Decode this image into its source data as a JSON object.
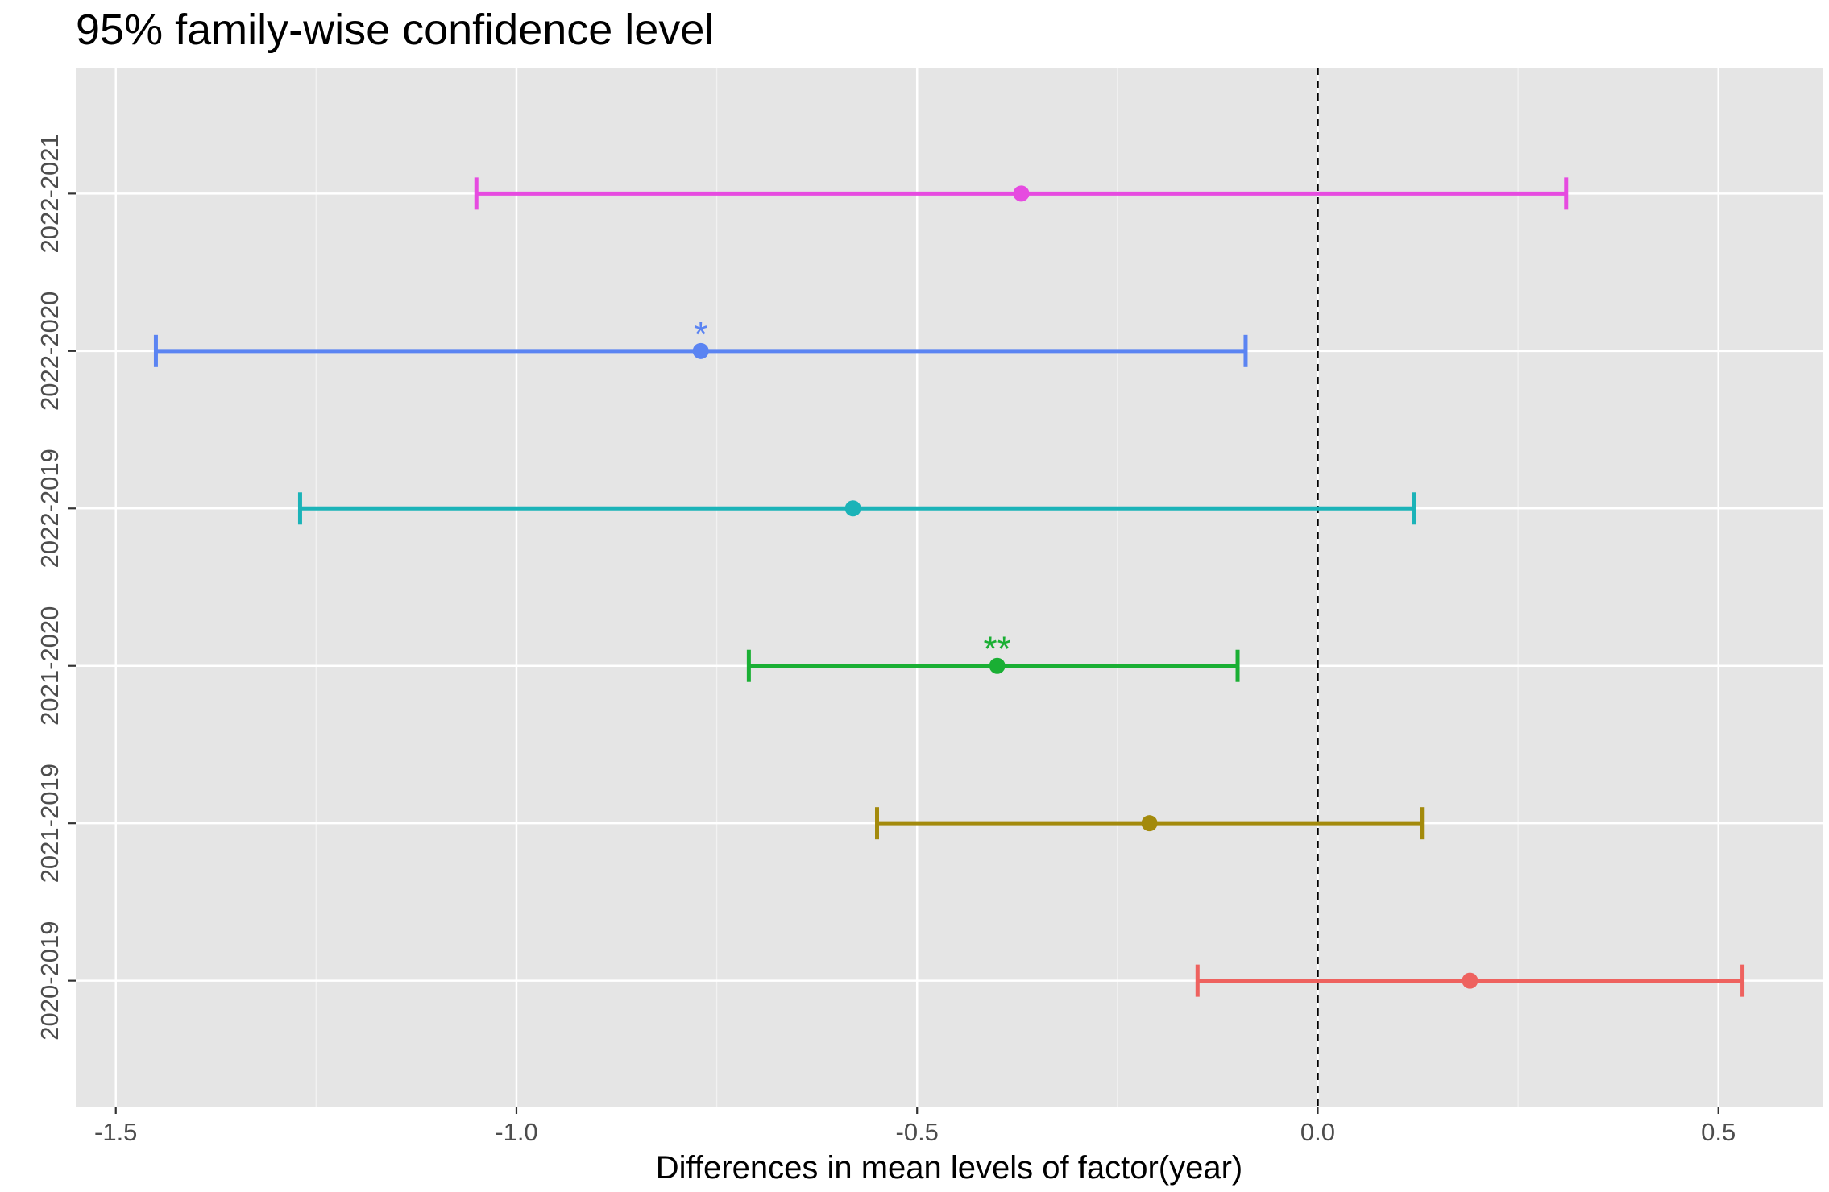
{
  "chart_data": {
    "type": "errorbar",
    "title": "95% family-wise confidence level",
    "xlabel": "Differences in mean levels of factor(year)",
    "ylabel": "",
    "xlim": [
      -1.55,
      0.63
    ],
    "x_ticks": [
      {
        "value": -1.5,
        "label": "-1.5"
      },
      {
        "value": -1.0,
        "label": "-1.0"
      },
      {
        "value": -0.5,
        "label": "-0.5"
      },
      {
        "value": 0.0,
        "label": "0.0"
      },
      {
        "value": 0.5,
        "label": "0.5"
      }
    ],
    "grid": true,
    "legend": "none",
    "reference_line": {
      "x": 0,
      "style": "dashed"
    },
    "comparisons": [
      {
        "label": "2022-2021",
        "estimate": -0.37,
        "lower": -1.05,
        "upper": 0.31,
        "color": "#E64BE0",
        "annotation": ""
      },
      {
        "label": "2022-2020",
        "estimate": -0.77,
        "lower": -1.45,
        "upper": -0.09,
        "color": "#5B84F2",
        "annotation": "*"
      },
      {
        "label": "2022-2019",
        "estimate": -0.58,
        "lower": -1.27,
        "upper": 0.12,
        "color": "#1BB3B8",
        "annotation": ""
      },
      {
        "label": "2021-2020",
        "estimate": -0.4,
        "lower": -0.71,
        "upper": -0.1,
        "color": "#1AAF34",
        "annotation": "**"
      },
      {
        "label": "2021-2019",
        "estimate": -0.21,
        "lower": -0.55,
        "upper": 0.13,
        "color": "#A38A0C",
        "annotation": ""
      },
      {
        "label": "2020-2019",
        "estimate": 0.19,
        "lower": -0.15,
        "upper": 0.53,
        "color": "#EE625F",
        "annotation": ""
      }
    ]
  }
}
